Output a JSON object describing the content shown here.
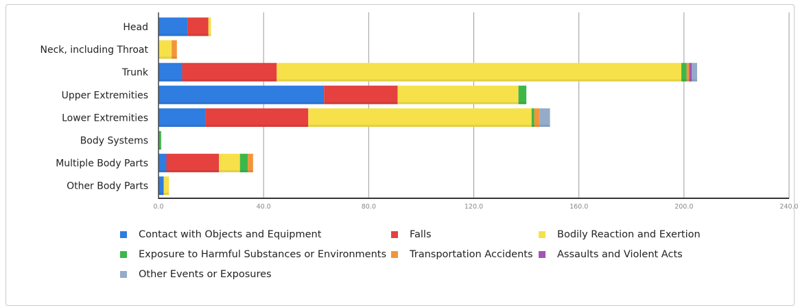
{
  "chart_data": {
    "type": "bar",
    "orientation": "horizontal",
    "stacked": true,
    "categories": [
      "Head",
      "Neck, including Throat",
      "Trunk",
      "Upper Extremities",
      "Lower Extremities",
      "Body Systems",
      "Multiple Body Parts",
      "Other Body Parts"
    ],
    "series": [
      {
        "name": "Contact with Objects and Equipment",
        "color": "#2f7de1",
        "values": [
          11,
          0,
          9,
          63,
          18,
          0,
          3,
          2
        ]
      },
      {
        "name": "Falls",
        "color": "#e4413f",
        "values": [
          8,
          0,
          36,
          28,
          39,
          0,
          20,
          0
        ]
      },
      {
        "name": "Bodily Reaction and Exertion",
        "color": "#f6e14a",
        "values": [
          1,
          5,
          154,
          46,
          85,
          0,
          8,
          2
        ]
      },
      {
        "name": "Exposure to Harmful Substances or Environments",
        "color": "#3db74a",
        "values": [
          0,
          0,
          2,
          3,
          1,
          1,
          3,
          0
        ]
      },
      {
        "name": "Transportation Accidents",
        "color": "#f2953a",
        "values": [
          0,
          2,
          1,
          0,
          2,
          0,
          2,
          0
        ]
      },
      {
        "name": "Assaults and Violent Acts",
        "color": "#a353b5",
        "values": [
          0,
          0,
          1,
          0,
          0,
          0,
          0,
          0
        ]
      },
      {
        "name": "Other Events or Exposures",
        "color": "#94abc9",
        "values": [
          0,
          0,
          2,
          0,
          4,
          0,
          0,
          0
        ]
      }
    ],
    "xlim": [
      0,
      240
    ],
    "xticks": [
      "0.0",
      "40.0",
      "80.0",
      "120.0",
      "160.0",
      "200.0",
      "240.0"
    ],
    "grid": true,
    "legend_position": "bottom"
  }
}
